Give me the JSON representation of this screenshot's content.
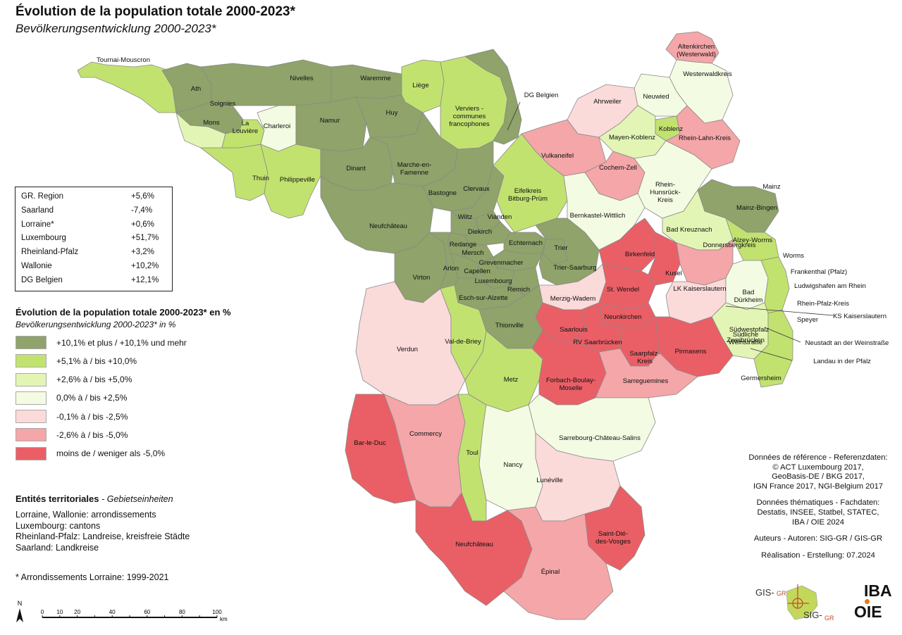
{
  "title": "Évolution de la population totale 2000-2023*",
  "subtitle": "Bevölkerungsentwicklung 2000-2023*",
  "stats": [
    {
      "region": "GR. Region",
      "value": "+5,6%"
    },
    {
      "region": "Saarland",
      "value": "-7,4%"
    },
    {
      "region": "Lorraine*",
      "value": "+0,6%"
    },
    {
      "region": "Luxembourg",
      "value": "+51,7%"
    },
    {
      "region": "Rheinland-Pfalz",
      "value": "+3,2%"
    },
    {
      "region": "Wallonie",
      "value": "+10,2%"
    },
    {
      "region": "DG Belgien",
      "value": "+12,1%"
    }
  ],
  "legend": {
    "title": "Évolution de la population totale 2000-2023* en %",
    "subtitle": "Bevölkerungsentwicklung 2000-2023* in %",
    "classes": [
      {
        "label": "+10,1% et plus / +10,1% und mehr",
        "color": "#8fa36a"
      },
      {
        "label": "+5,1% à / bis +10,0%",
        "color": "#c2e270"
      },
      {
        "label": "+2,6% à / bis +5,0%",
        "color": "#e3f5b5"
      },
      {
        "label": "0,0% à / bis +2,5%",
        "color": "#f4fbe3"
      },
      {
        "label": "-0,1% à / bis -2,5%",
        "color": "#fbdada"
      },
      {
        "label": "-2,6% à / bis -5,0%",
        "color": "#f4a6a8"
      },
      {
        "label": "moins de / weniger als -5,0%",
        "color": "#ea5f66"
      }
    ]
  },
  "entities": {
    "title": "Entités territoriales",
    "title_de": "- Gebietseinheiten",
    "lines": [
      "Lorraine, Wallonie: arrondissements",
      "Luxembourg: cantons",
      "Rheinland-Pfalz: Landreise, kreisfreie Städte",
      "Saarland: Landkreise"
    ]
  },
  "footnote": "* Arrondissements Lorraine: 1999-2021",
  "scale": {
    "ticks": [
      "0",
      "10",
      "20",
      "40",
      "60",
      "80",
      "100"
    ],
    "unit": "km",
    "north": "N"
  },
  "credits": [
    "Données de référence - Referenzdaten:\n© ACT Luxembourg 2017,\nGeoBasis-DE / BKG 2017,\nIGN France 2017, NGI-Belgium 2017",
    "Données thématiques - Fachdaten:\nDestatis, INSEE, Statbel, STATEC,\nIBA / OIE 2024",
    "Auteurs - Autoren: SIG-GR / GIS-GR",
    "Réalisation - Erstellung: 07.2024"
  ],
  "logos": {
    "gis1": "GIS-",
    "gis1b": "GR",
    "sig1": "SIG-",
    "sig1b": "GR",
    "iba": "IBA",
    "oie": "OIE"
  },
  "map_labels": [
    "Tournai-Mouscron",
    "Ath",
    "Nivelles",
    "Waremme",
    "Liège",
    "Soignies",
    "Mons",
    "La Louvière",
    "Charleroi",
    "Namur",
    "Huy",
    "Verviers - communes francophones",
    "DG Belgien",
    "Dinant",
    "Marche-en-Famenne",
    "Thuin",
    "Philippeville",
    "Bastogne",
    "Clervaux",
    "Neufchâteau",
    "Wiltz",
    "Vianden",
    "Diekirch",
    "Echternach",
    "Redange",
    "Mersch",
    "Grevenmacher",
    "Arlon",
    "Capellen",
    "Luxembourg",
    "Virton",
    "Remich",
    "Esch-sur-Alzette",
    "Trier",
    "Trier-Saarburg",
    "Altenkirchen (Westerwald)",
    "Westerwaldkreis",
    "Neuwied",
    "Ahrweiler",
    "Koblenz",
    "Mayen-Koblenz",
    "Rhein-Lahn-Kreis",
    "Vulkaneifel",
    "Cochem-Zell",
    "Rhein-Hunsrück-Kreis",
    "Eifelkreis Bitburg-Prüm",
    "Bernkastel-Wittlich",
    "Mainz",
    "Mainz-Bingen",
    "Bad Kreuznach",
    "Alzey-Worms",
    "Worms",
    "Birkenfeld",
    "Kusel",
    "Donnersbergkreis",
    "Frankenthal (Pfalz)",
    "Ludwigshafen am Rhein",
    "LK Kaiserslautern",
    "Bad Dürkheim",
    "Rhein-Pfalz-Kreis",
    "KS Kaiserslautern",
    "St. Wendel",
    "Neunkirchen",
    "Merzig-Wadern",
    "Speyer",
    "Südwestpfalz",
    "Zweibrücken",
    "Südliche Weinstraße",
    "Neustadt an der Weinstraße",
    "Saarlouis",
    "RV Saarbrücken",
    "Saarpfalz-Kreis",
    "Pirmasens",
    "Landau in der Pfalz",
    "Germersheim",
    "Verdun",
    "Val-de-Briey",
    "Thionville",
    "Metz",
    "Forbach-Boulay-Moselle",
    "Sarreguemines",
    "Bar-le-Duc",
    "Commercy",
    "Toul",
    "Nancy",
    "Sarrebourg-Château-Salins",
    "Lunéville",
    "Neufchâteau",
    "Saint-Dié-des-Vosges",
    "Épinal"
  ]
}
